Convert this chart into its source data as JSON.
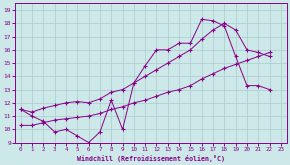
{
  "xlabel": "Windchill (Refroidissement éolien,°C)",
  "bg_color": "#cce8e8",
  "line_color": "#880088",
  "grid_color": "#aacccc",
  "xlim": [
    -0.5,
    23.5
  ],
  "ylim": [
    9,
    19.5
  ],
  "xticks": [
    0,
    1,
    2,
    3,
    4,
    5,
    6,
    7,
    8,
    9,
    10,
    11,
    12,
    13,
    14,
    15,
    16,
    17,
    18,
    19,
    20,
    21,
    22,
    23
  ],
  "yticks": [
    9,
    10,
    11,
    12,
    13,
    14,
    15,
    16,
    17,
    18,
    19
  ],
  "line1_x": [
    0,
    1,
    2,
    3,
    4,
    5,
    6,
    7,
    8,
    9,
    10,
    11,
    12,
    13,
    14,
    15,
    16,
    17,
    18,
    19,
    20,
    21,
    22
  ],
  "line1_y": [
    11.5,
    11.0,
    10.6,
    9.8,
    10.0,
    9.5,
    9.0,
    9.8,
    12.2,
    10.0,
    13.5,
    14.8,
    16.0,
    16.0,
    16.5,
    16.5,
    18.3,
    18.2,
    17.8,
    15.5,
    13.3,
    13.3,
    13.0
  ],
  "line2_x": [
    0,
    1,
    2,
    3,
    4,
    5,
    6,
    7,
    8,
    9,
    10,
    11,
    12,
    13,
    14,
    15,
    16,
    17,
    18,
    19,
    20,
    21,
    22
  ],
  "line2_y": [
    11.5,
    11.3,
    11.6,
    11.8,
    12.0,
    12.1,
    12.0,
    12.3,
    12.8,
    13.0,
    13.5,
    14.0,
    14.5,
    15.0,
    15.5,
    16.0,
    16.8,
    17.5,
    18.0,
    17.5,
    16.0,
    15.8,
    15.5
  ],
  "line3_x": [
    0,
    1,
    2,
    3,
    4,
    5,
    6,
    7,
    8,
    9,
    10,
    11,
    12,
    13,
    14,
    15,
    16,
    17,
    18,
    19,
    20,
    21,
    22
  ],
  "line3_y": [
    10.3,
    10.3,
    10.5,
    10.7,
    10.8,
    10.9,
    11.0,
    11.2,
    11.5,
    11.7,
    12.0,
    12.2,
    12.5,
    12.8,
    13.0,
    13.3,
    13.8,
    14.2,
    14.6,
    14.9,
    15.2,
    15.5,
    15.8
  ]
}
